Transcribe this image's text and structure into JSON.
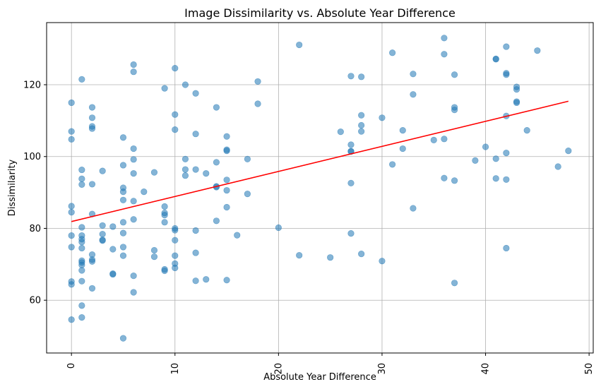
{
  "chart_data": {
    "type": "scatter",
    "title": "Image Dissimilarity vs. Absolute Year Difference",
    "xlabel": "Absolute Year Difference",
    "ylabel": "Dissimilarity",
    "xlim": [
      -2.4,
      50.4
    ],
    "ylim": [
      45.3,
      137.3
    ],
    "xticks": [
      0,
      10,
      20,
      30,
      40,
      50
    ],
    "yticks": [
      60,
      80,
      100,
      120
    ],
    "grid": true,
    "colors": {
      "points": "#1f77b4",
      "trend": "#ff0000",
      "grid": "#b0b0b0"
    },
    "point_alpha": 0.55,
    "trendline": {
      "x": [
        0,
        48
      ],
      "y": [
        81.9,
        115.4
      ]
    },
    "points": [
      [
        0,
        115.0
      ],
      [
        0,
        107.0
      ],
      [
        0,
        104.8
      ],
      [
        0,
        86.2
      ],
      [
        0,
        84.5
      ],
      [
        0,
        78.0
      ],
      [
        0,
        74.8
      ],
      [
        0,
        65.2
      ],
      [
        0,
        64.4
      ],
      [
        0,
        54.6
      ],
      [
        1,
        121.5
      ],
      [
        1,
        96.3
      ],
      [
        1,
        93.8
      ],
      [
        1,
        92.2
      ],
      [
        1,
        80.3
      ],
      [
        1,
        78.0
      ],
      [
        1,
        77.0
      ],
      [
        1,
        76.2
      ],
      [
        1,
        74.5
      ],
      [
        1,
        71.0
      ],
      [
        1,
        70.5
      ],
      [
        1,
        69.8
      ],
      [
        1,
        68.3
      ],
      [
        1,
        65.3
      ],
      [
        1,
        58.5
      ],
      [
        1,
        55.2
      ],
      [
        2,
        113.7
      ],
      [
        2,
        110.8
      ],
      [
        2,
        108.4
      ],
      [
        2,
        107.8
      ],
      [
        2,
        92.3
      ],
      [
        2,
        84.0
      ],
      [
        2,
        72.7
      ],
      [
        2,
        71.3
      ],
      [
        2,
        70.8
      ],
      [
        2,
        63.3
      ],
      [
        3,
        96.0
      ],
      [
        3,
        80.8
      ],
      [
        3,
        78.4
      ],
      [
        3,
        76.6
      ],
      [
        3,
        76.8
      ],
      [
        4,
        80.5
      ],
      [
        4,
        74.2
      ],
      [
        4,
        67.4
      ],
      [
        4,
        67.2
      ],
      [
        5,
        105.3
      ],
      [
        5,
        97.6
      ],
      [
        5,
        91.3
      ],
      [
        5,
        90.2
      ],
      [
        5,
        87.9
      ],
      [
        5,
        81.7
      ],
      [
        5,
        78.7
      ],
      [
        5,
        74.8
      ],
      [
        5,
        72.4
      ],
      [
        5,
        49.4
      ],
      [
        6,
        125.6
      ],
      [
        6,
        123.6
      ],
      [
        6,
        102.2
      ],
      [
        6,
        99.2
      ],
      [
        6,
        95.3
      ],
      [
        6,
        87.6
      ],
      [
        6,
        82.5
      ],
      [
        6,
        66.8
      ],
      [
        6,
        62.2
      ],
      [
        7,
        90.2
      ],
      [
        8,
        95.6
      ],
      [
        8,
        73.9
      ],
      [
        8,
        72.1
      ],
      [
        9,
        119.0
      ],
      [
        9,
        86.1
      ],
      [
        9,
        84.3
      ],
      [
        9,
        83.7
      ],
      [
        9,
        81.7
      ],
      [
        9,
        68.6
      ],
      [
        9,
        68.2
      ],
      [
        10,
        124.6
      ],
      [
        10,
        111.7
      ],
      [
        10,
        107.5
      ],
      [
        10,
        80.0
      ],
      [
        10,
        79.5
      ],
      [
        10,
        76.7
      ],
      [
        10,
        72.4
      ],
      [
        10,
        70.2
      ],
      [
        10,
        69.0
      ],
      [
        11,
        120.0
      ],
      [
        11,
        99.3
      ],
      [
        11,
        96.4
      ],
      [
        11,
        94.7
      ],
      [
        12,
        117.6
      ],
      [
        12,
        106.3
      ],
      [
        12,
        96.4
      ],
      [
        12,
        79.4
      ],
      [
        12,
        73.2
      ],
      [
        12,
        65.4
      ],
      [
        13,
        95.3
      ],
      [
        13,
        65.8
      ],
      [
        14,
        113.7
      ],
      [
        14,
        98.4
      ],
      [
        14,
        91.7
      ],
      [
        14,
        91.5
      ],
      [
        14,
        82.1
      ],
      [
        15,
        105.6
      ],
      [
        15,
        101.9
      ],
      [
        15,
        101.6
      ],
      [
        15,
        93.5
      ],
      [
        15,
        90.6
      ],
      [
        15,
        85.9
      ],
      [
        15,
        65.6
      ],
      [
        16,
        78.1
      ],
      [
        17,
        99.3
      ],
      [
        17,
        89.6
      ],
      [
        18,
        120.9
      ],
      [
        18,
        114.7
      ],
      [
        20,
        80.2
      ],
      [
        22,
        131.1
      ],
      [
        22,
        72.5
      ],
      [
        25,
        71.9
      ],
      [
        26,
        106.9
      ],
      [
        27,
        122.4
      ],
      [
        27,
        103.3
      ],
      [
        27,
        101.5
      ],
      [
        27,
        101.4
      ],
      [
        27,
        92.6
      ],
      [
        27,
        78.6
      ],
      [
        28,
        122.2
      ],
      [
        28,
        111.5
      ],
      [
        28,
        108.7
      ],
      [
        28,
        107.0
      ],
      [
        28,
        72.9
      ],
      [
        30,
        110.8
      ],
      [
        30,
        70.9
      ],
      [
        31,
        128.9
      ],
      [
        31,
        97.8
      ],
      [
        32,
        107.3
      ],
      [
        32,
        102.2
      ],
      [
        33,
        123.0
      ],
      [
        33,
        117.3
      ],
      [
        33,
        85.6
      ],
      [
        35,
        104.6
      ],
      [
        36,
        133.0
      ],
      [
        36,
        128.5
      ],
      [
        36,
        104.9
      ],
      [
        36,
        94.0
      ],
      [
        37,
        122.8
      ],
      [
        37,
        113.7
      ],
      [
        37,
        113.0
      ],
      [
        37,
        93.3
      ],
      [
        37,
        64.8
      ],
      [
        39,
        98.9
      ],
      [
        40,
        102.7
      ],
      [
        41,
        127.2
      ],
      [
        41,
        127.1
      ],
      [
        41,
        99.4
      ],
      [
        41,
        93.9
      ],
      [
        42,
        130.6
      ],
      [
        42,
        123.2
      ],
      [
        42,
        122.8
      ],
      [
        42,
        111.3
      ],
      [
        42,
        101.0
      ],
      [
        42,
        93.6
      ],
      [
        42,
        74.5
      ],
      [
        43,
        119.4
      ],
      [
        43,
        118.7
      ],
      [
        43,
        115.3
      ],
      [
        43,
        115.0
      ],
      [
        44,
        107.3
      ],
      [
        45,
        129.5
      ],
      [
        47,
        97.2
      ],
      [
        48,
        101.6
      ]
    ]
  }
}
